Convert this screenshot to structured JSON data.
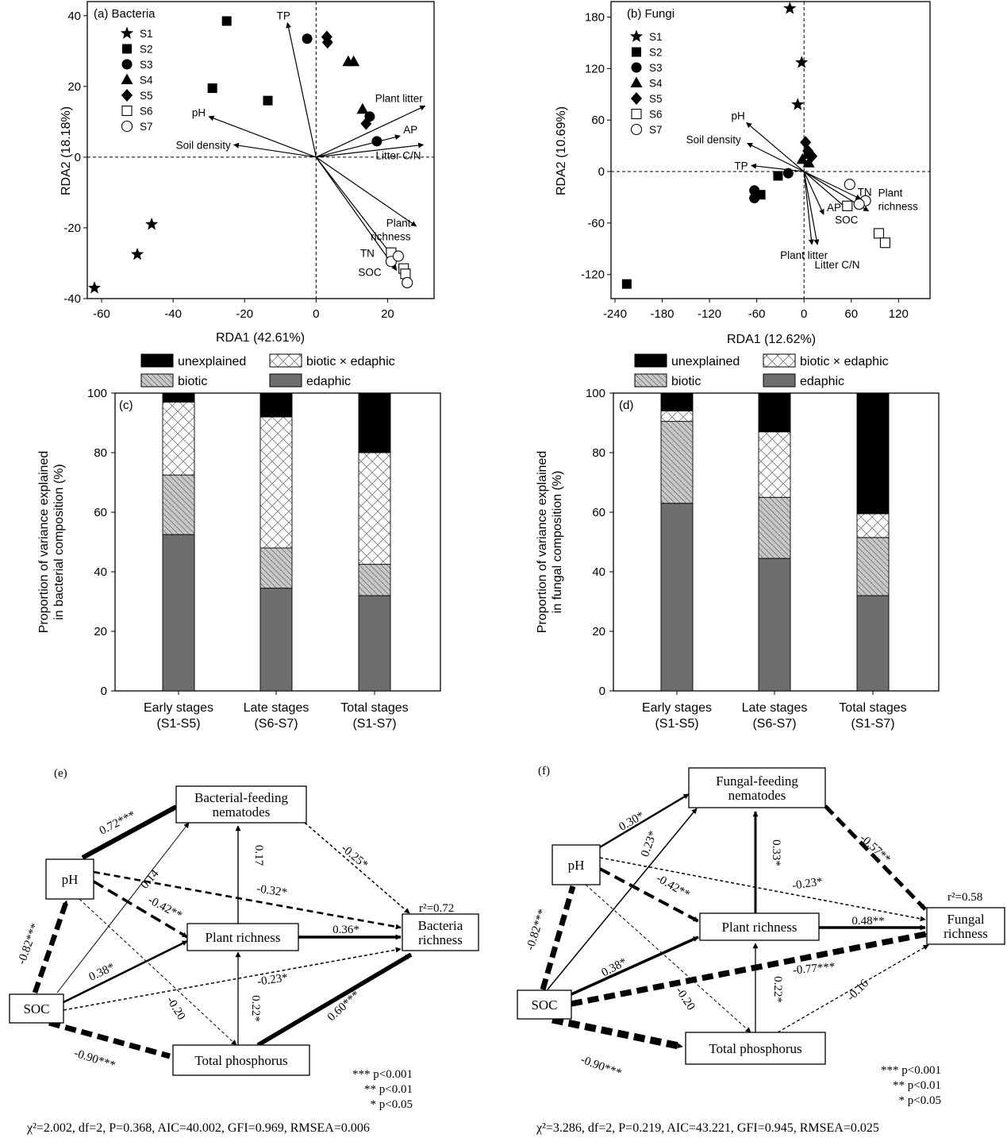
{
  "colors": {
    "unexplained": "#000000",
    "biotic": "#c8c8c8",
    "interaction": "#ffffff",
    "edaphic": "#6e6e6e"
  },
  "chart_data": [
    {
      "id": "a",
      "type": "scatter",
      "title": "(a) Bacteria",
      "xlabel": "RDA1 (42.61%)",
      "ylabel": "RDA2 (18.18%)",
      "xlim": [
        -64,
        33
      ],
      "ylim": [
        -40,
        44
      ],
      "xticks": [
        -60,
        -40,
        -20,
        0,
        20
      ],
      "yticks": [
        -40,
        -20,
        0,
        20,
        40
      ],
      "legend": [
        {
          "label": "S1",
          "marker": "star"
        },
        {
          "label": "S2",
          "marker": "square"
        },
        {
          "label": "S3",
          "marker": "circle"
        },
        {
          "label": "S4",
          "marker": "triangle"
        },
        {
          "label": "S5",
          "marker": "diamond"
        },
        {
          "label": "S6",
          "marker": "open-square"
        },
        {
          "label": "S7",
          "marker": "open-circle"
        }
      ],
      "points": [
        {
          "s": "S1",
          "x": -46,
          "y": -19
        },
        {
          "s": "S1",
          "x": -50,
          "y": -27.5
        },
        {
          "s": "S1",
          "x": -62,
          "y": -37
        },
        {
          "s": "S2",
          "x": -25,
          "y": 38.5
        },
        {
          "s": "S2",
          "x": -29,
          "y": 19.5
        },
        {
          "s": "S2",
          "x": -13.5,
          "y": 16
        },
        {
          "s": "S3",
          "x": -2.5,
          "y": 33.5
        },
        {
          "s": "S3",
          "x": 15,
          "y": 11.5
        },
        {
          "s": "S3",
          "x": 17,
          "y": 4.5
        },
        {
          "s": "S4",
          "x": 9,
          "y": 27
        },
        {
          "s": "S4",
          "x": 10.5,
          "y": 27
        },
        {
          "s": "S4",
          "x": 13,
          "y": 13.5
        },
        {
          "s": "S5",
          "x": 3,
          "y": 34
        },
        {
          "s": "S5",
          "x": 3.2,
          "y": 32.5
        },
        {
          "s": "S5",
          "x": 14,
          "y": 9.5
        },
        {
          "s": "S6",
          "x": 21,
          "y": -27
        },
        {
          "s": "S6",
          "x": 24.5,
          "y": -31.5
        },
        {
          "s": "S6",
          "x": 25,
          "y": -33
        },
        {
          "s": "S7",
          "x": 21,
          "y": -29.5
        },
        {
          "s": "S7",
          "x": 23,
          "y": -28
        },
        {
          "s": "S7",
          "x": 25.5,
          "y": -35.5
        }
      ],
      "vectors": [
        {
          "label": "TP",
          "x": -8,
          "y": 38
        },
        {
          "label": "pH",
          "x": -30,
          "y": 11.5
        },
        {
          "label": "Soil density",
          "x": -23,
          "y": 3.5
        },
        {
          "label": "Plant litter",
          "x": 30.5,
          "y": 14.5
        },
        {
          "label": "AP",
          "x": 23.5,
          "y": 6
        },
        {
          "label": "Litter C/N",
          "x": 30,
          "y": 3.5
        },
        {
          "label": "Plant richness",
          "x": 28,
          "y": -19.5
        },
        {
          "label": "TN",
          "x": 21,
          "y": -27.5
        },
        {
          "label": "SOC",
          "x": 22.5,
          "y": -32
        }
      ]
    },
    {
      "id": "b",
      "type": "scatter",
      "title": "(b) Fungi",
      "xlabel": "RDA1 (12.62%)",
      "ylabel": "RDA2 (10.69%)",
      "xlim": [
        -245,
        160
      ],
      "ylim": [
        -148,
        198
      ],
      "xticks": [
        -240,
        -180,
        -120,
        -60,
        0,
        60,
        120
      ],
      "yticks": [
        -120,
        -60,
        0,
        60,
        120,
        180
      ],
      "legend": [
        {
          "label": "S1",
          "marker": "star"
        },
        {
          "label": "S2",
          "marker": "square"
        },
        {
          "label": "S3",
          "marker": "circle"
        },
        {
          "label": "S4",
          "marker": "triangle"
        },
        {
          "label": "S5",
          "marker": "diamond"
        },
        {
          "label": "S6",
          "marker": "open-square"
        },
        {
          "label": "S7",
          "marker": "open-circle"
        }
      ],
      "points": [
        {
          "s": "S1",
          "x": -18,
          "y": 190
        },
        {
          "s": "S1",
          "x": -3,
          "y": 127
        },
        {
          "s": "S1",
          "x": -8,
          "y": 78
        },
        {
          "s": "S2",
          "x": -225,
          "y": -131
        },
        {
          "s": "S2",
          "x": -55,
          "y": -27
        },
        {
          "s": "S2",
          "x": -33,
          "y": -5
        },
        {
          "s": "S3",
          "x": -63,
          "y": -22
        },
        {
          "s": "S3",
          "x": -63,
          "y": -31
        },
        {
          "s": "S3",
          "x": -20,
          "y": -2
        },
        {
          "s": "S4",
          "x": 4,
          "y": 20
        },
        {
          "s": "S4",
          "x": 6,
          "y": 10
        },
        {
          "s": "S4",
          "x": -2,
          "y": 14
        },
        {
          "s": "S5",
          "x": 2,
          "y": 34
        },
        {
          "s": "S5",
          "x": 5,
          "y": 24
        },
        {
          "s": "S5",
          "x": 10,
          "y": 18
        },
        {
          "s": "S6",
          "x": 55,
          "y": -40
        },
        {
          "s": "S6",
          "x": 95,
          "y": -72
        },
        {
          "s": "S6",
          "x": 103,
          "y": -83
        },
        {
          "s": "S7",
          "x": 58,
          "y": -15
        },
        {
          "s": "S7",
          "x": 78,
          "y": -34
        },
        {
          "s": "S7",
          "x": 70,
          "y": -38
        }
      ],
      "vectors": [
        {
          "label": "pH",
          "x": -73,
          "y": 57
        },
        {
          "label": "Soil density",
          "x": -72,
          "y": 33
        },
        {
          "label": "TP",
          "x": -67,
          "y": 7
        },
        {
          "label": "TN",
          "x": 72,
          "y": -32
        },
        {
          "label": "Plant richness",
          "x": 82,
          "y": -46
        },
        {
          "label": "SOC",
          "x": 58,
          "y": -46
        },
        {
          "label": "AP",
          "x": 25,
          "y": -50
        },
        {
          "label": "Plant litter",
          "x": 10,
          "y": -85
        },
        {
          "label": "Litter C/N",
          "x": 17,
          "y": -85
        }
      ]
    },
    {
      "id": "c",
      "type": "bar",
      "title": "(c)",
      "ylabel": "Proportion of variance explained in bacterial composition (%)",
      "ylabel_lines": [
        "Proportion of variance explained",
        "in bacterial composition (%)"
      ],
      "ylim": [
        0,
        100
      ],
      "yticks": [
        0,
        20,
        40,
        60,
        80,
        100
      ],
      "categories": [
        [
          "Early stages",
          "(S1-S5)"
        ],
        [
          "Late stages",
          "(S6-S7)"
        ],
        [
          "Total stages",
          "(S1-S7)"
        ]
      ],
      "series": [
        {
          "name": "edaphic",
          "values": [
            52.5,
            34.5,
            32
          ]
        },
        {
          "name": "biotic",
          "values": [
            20,
            13.5,
            10.5
          ]
        },
        {
          "name": "biotic × edaphic",
          "values": [
            24.5,
            44,
            37.5
          ]
        },
        {
          "name": "unexplained",
          "values": [
            3,
            8,
            20
          ]
        }
      ]
    },
    {
      "id": "d",
      "type": "bar",
      "title": "(d)",
      "ylabel": "Proportion of variance explained in fungal composition (%)",
      "ylabel_lines": [
        "Proportion of variance explained",
        "in fungal composition (%)"
      ],
      "ylim": [
        0,
        100
      ],
      "yticks": [
        0,
        20,
        40,
        60,
        80,
        100
      ],
      "categories": [
        [
          "Early stages",
          "(S1-S5)"
        ],
        [
          "Late stages",
          "(S6-S7)"
        ],
        [
          "Total stages",
          "(S1-S7)"
        ]
      ],
      "series": [
        {
          "name": "edaphic",
          "values": [
            63,
            44.5,
            32
          ]
        },
        {
          "name": "biotic",
          "values": [
            27.5,
            20.5,
            19.5
          ]
        },
        {
          "name": "biotic × edaphic",
          "values": [
            3.5,
            22,
            8
          ]
        },
        {
          "name": "unexplained",
          "values": [
            6,
            13,
            40.5
          ]
        }
      ]
    }
  ],
  "legend_cd": {
    "unexplained": "unexplained",
    "interaction": "biotic × edaphic",
    "biotic": "biotic",
    "edaphic": "edaphic"
  },
  "diagrams": [
    {
      "id": "e",
      "title": "(e)",
      "nodes": [
        {
          "id": "bfn",
          "lines": [
            "Bacterial-feeding",
            "nematodes"
          ]
        },
        {
          "id": "ph",
          "lines": [
            "pH"
          ]
        },
        {
          "id": "pr",
          "lines": [
            "Plant richness"
          ]
        },
        {
          "id": "br",
          "lines": [
            "Bacteria",
            "richness"
          ]
        },
        {
          "id": "soc",
          "lines": [
            "SOC"
          ]
        },
        {
          "id": "tp",
          "lines": [
            "Total phosphorus"
          ]
        }
      ],
      "r2": "r²=0.72",
      "paths": [
        {
          "from": "ph",
          "to": "bfn",
          "coef": "0.72***",
          "sign": "pos"
        },
        {
          "from": "soc",
          "to": "bfn",
          "coef": "0.14",
          "sign": "pos"
        },
        {
          "from": "pr",
          "to": "bfn",
          "coef": "0.17",
          "sign": "pos"
        },
        {
          "from": "bfn",
          "to": "br",
          "coef": "-0.25*",
          "sign": "neg"
        },
        {
          "from": "ph",
          "to": "br",
          "coef": "-0.32*",
          "sign": "neg"
        },
        {
          "from": "ph",
          "to": "pr",
          "coef": "-0.42**",
          "sign": "neg"
        },
        {
          "from": "pr",
          "to": "br",
          "coef": "0.36*",
          "sign": "pos"
        },
        {
          "from": "soc",
          "to": "ph",
          "coef": "-0.82***",
          "sign": "neg"
        },
        {
          "from": "soc",
          "to": "pr",
          "coef": "0.38*",
          "sign": "pos"
        },
        {
          "from": "soc",
          "to": "br",
          "coef": "-0.23*",
          "sign": "neg"
        },
        {
          "from": "ph",
          "to": "tp",
          "coef": "-0.20",
          "sign": "neg"
        },
        {
          "from": "tp",
          "to": "pr",
          "coef": "0.22*",
          "sign": "pos"
        },
        {
          "from": "tp",
          "to": "br",
          "coef": "0.60***",
          "sign": "pos"
        },
        {
          "from": "soc",
          "to": "tp",
          "coef": "-0.90***",
          "sign": "neg"
        }
      ],
      "significance": [
        "*** p<0.001",
        "** p<0.01",
        "* p<0.05"
      ],
      "fit": "χ²=2.002, df=2, P=0.368, AIC=40.002, GFI=0.969, RMSEA=0.006"
    },
    {
      "id": "f",
      "title": "(f)",
      "nodes": [
        {
          "id": "ffn",
          "lines": [
            "Fungal-feeding",
            "nematodes"
          ]
        },
        {
          "id": "ph",
          "lines": [
            "pH"
          ]
        },
        {
          "id": "pr",
          "lines": [
            "Plant richness"
          ]
        },
        {
          "id": "fr",
          "lines": [
            "Fungal",
            "richness"
          ]
        },
        {
          "id": "soc",
          "lines": [
            "SOC"
          ]
        },
        {
          "id": "tp",
          "lines": [
            "Total phosphorus"
          ]
        }
      ],
      "r2": "r²=0.58",
      "paths": [
        {
          "from": "ph",
          "to": "ffn",
          "coef": "0.30*",
          "sign": "pos"
        },
        {
          "from": "soc",
          "to": "ffn",
          "coef": "0.23*",
          "sign": "pos"
        },
        {
          "from": "pr",
          "to": "ffn",
          "coef": "0.33*",
          "sign": "pos"
        },
        {
          "from": "ffn",
          "to": "fr",
          "coef": "-0.57**",
          "sign": "neg"
        },
        {
          "from": "ph",
          "to": "fr",
          "coef": "-0.23*",
          "sign": "neg"
        },
        {
          "from": "ph",
          "to": "pr",
          "coef": "-0.42**",
          "sign": "neg"
        },
        {
          "from": "pr",
          "to": "fr",
          "coef": "0.48**",
          "sign": "pos"
        },
        {
          "from": "soc",
          "to": "ph",
          "coef": "-0.82***",
          "sign": "neg"
        },
        {
          "from": "soc",
          "to": "pr",
          "coef": "0.38*",
          "sign": "pos"
        },
        {
          "from": "soc",
          "to": "fr",
          "coef": "-0.77***",
          "sign": "neg"
        },
        {
          "from": "ph",
          "to": "tp",
          "coef": "-0.20",
          "sign": "neg"
        },
        {
          "from": "tp",
          "to": "pr",
          "coef": "0.22*",
          "sign": "pos"
        },
        {
          "from": "tp",
          "to": "fr",
          "coef": "-0.16",
          "sign": "neg"
        },
        {
          "from": "soc",
          "to": "tp",
          "coef": "-0.90***",
          "sign": "neg"
        }
      ],
      "significance": [
        "*** p<0.001",
        "** p<0.01",
        "* p<0.05"
      ],
      "fit": "χ²=3.286, df=2, P=0.219, AIC=43.221, GFI=0.945, RMSEA=0.025"
    }
  ]
}
